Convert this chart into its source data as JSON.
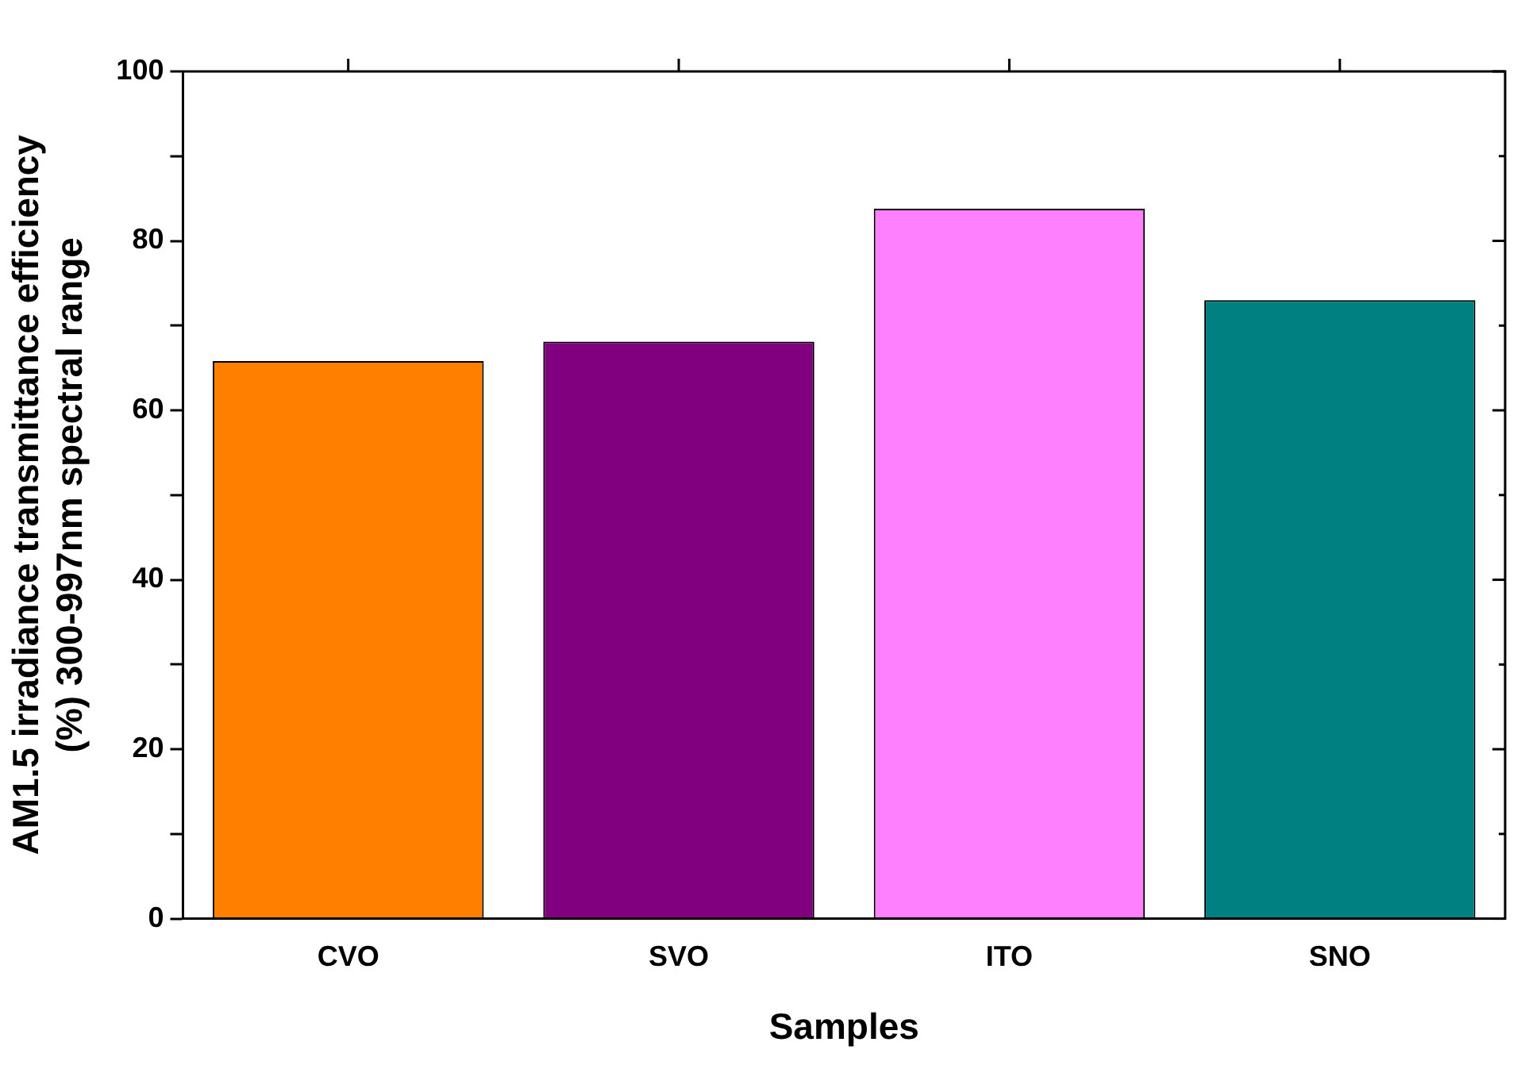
{
  "chart_data": {
    "type": "bar",
    "xlabel": "Samples",
    "ylabel": "AM1.5 irradiance transmittance efficiency\n(%) 300-997nm spectral range",
    "categories": [
      "CVO",
      "SVO",
      "ITO",
      "SNO"
    ],
    "values": [
      65.8,
      68.1,
      83.8,
      73.0
    ],
    "colors": [
      "#ff8000",
      "#800080",
      "#ff80ff",
      "#008080"
    ],
    "ylim": [
      0,
      100
    ],
    "yticks": [
      0,
      {
        "value": 10,
        "label": null
      },
      20,
      {
        "value": 30,
        "label": null
      },
      40,
      {
        "value": 50,
        "label": null
      },
      60,
      {
        "value": 70,
        "label": null
      },
      80,
      {
        "value": 90,
        "label": null
      },
      100
    ],
    "grid": false
  }
}
